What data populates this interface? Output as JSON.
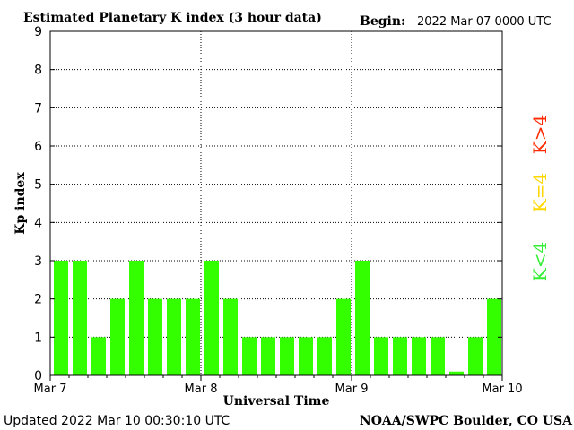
{
  "header": {
    "title": "Estimated Planetary K index (3 hour data)",
    "begin_label": "Begin:",
    "begin_value": "2022 Mar 07 0000 UTC"
  },
  "footer": {
    "updated": "Updated 2022 Mar 10 00:30:10 UTC",
    "credit": "NOAA/SWPC Boulder, CO USA"
  },
  "legend": {
    "high": {
      "text": "K>4",
      "color": "#ff2a00"
    },
    "equal": {
      "text": "K=4",
      "color": "#ffd700"
    },
    "low": {
      "text": "K<4",
      "color": "#33ee33"
    }
  },
  "chart_data": {
    "type": "bar",
    "title": "Estimated Planetary K index (3 hour data)",
    "xlabel": "Universal Time",
    "ylabel": "Kp index",
    "ylim": [
      0,
      9
    ],
    "yticks": [
      "0",
      "1",
      "2",
      "3",
      "4",
      "5",
      "6",
      "7",
      "8",
      "9"
    ],
    "xticks": [
      "Mar 7",
      "Mar 8",
      "Mar 9",
      "Mar 10"
    ],
    "grid": true,
    "bar_color": "#33ff00",
    "values": [
      3,
      3,
      1,
      2,
      3,
      2,
      2,
      2,
      3,
      2,
      1,
      1,
      1,
      1,
      1,
      2,
      3,
      1,
      1,
      1,
      1,
      0.1,
      1,
      2
    ]
  }
}
